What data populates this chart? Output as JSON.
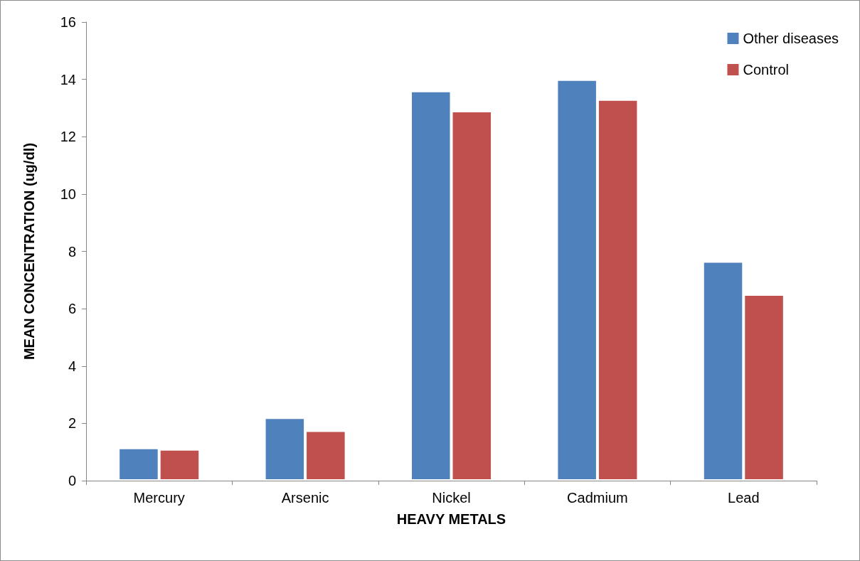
{
  "chart_data": {
    "type": "bar",
    "xlabel": "HEAVY METALS",
    "ylabel": "MEAN CONCENTRATION (ug/dl)",
    "categories": [
      "Mercury",
      "Arsenic",
      "Nickel",
      "Cadmium",
      "Lead"
    ],
    "series": [
      {
        "name": "Other diseases",
        "color": "#4f81bd",
        "values": [
          1.15,
          2.2,
          13.6,
          14.0,
          7.65
        ]
      },
      {
        "name": "Control",
        "color": "#c0504d",
        "values": [
          1.1,
          1.75,
          12.9,
          13.3,
          6.5
        ]
      }
    ],
    "ylim": [
      0,
      16
    ],
    "yticks": [
      0,
      2,
      4,
      6,
      8,
      10,
      12,
      14,
      16
    ],
    "grid": false,
    "legend": "top right"
  }
}
